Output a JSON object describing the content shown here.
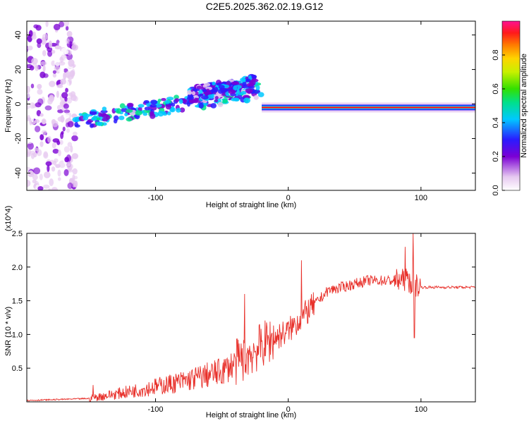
{
  "title": "C2E5.2025.362.02.19.G12",
  "chart_data": [
    {
      "type": "heatmap",
      "name": "spectrogram",
      "xlabel": "Height of straight line (km)",
      "ylabel": "Frequency (Hz)",
      "xlim": [
        -197,
        141
      ],
      "ylim": [
        -50,
        48
      ],
      "xticks": [
        -100,
        0,
        100
      ],
      "xtick_labels": [
        "-100",
        "0",
        "100"
      ],
      "yticks": [
        -40,
        -20,
        0,
        20,
        40
      ],
      "ytick_labels": [
        "-40",
        "-20",
        "0",
        "20",
        "40"
      ],
      "colorbar": {
        "label": "Normalized spectral amplitude",
        "range": [
          0,
          1
        ],
        "ticks": [
          0.0,
          0.2,
          0.4,
          0.6,
          0.8
        ],
        "tick_labels": [
          "0.0",
          "0.2",
          "0.4",
          "0.6",
          "0.8"
        ]
      },
      "features": [
        {
          "name": "scattered noise",
          "x_range": [
            -197,
            -160
          ],
          "freq_range": [
            -50,
            48
          ],
          "amplitude": 0.15
        },
        {
          "name": "rising broadband band",
          "x_start": -160,
          "x_end": -20,
          "freq_start": -10,
          "freq_end": 8,
          "amplitude": 0.3
        },
        {
          "name": "upper branch",
          "x_start": -75,
          "x_end": -25,
          "freq_start": 5,
          "freq_end": 12,
          "amplitude": 0.25
        },
        {
          "name": "narrow tone",
          "x_start": -20,
          "x_end": 141,
          "freq": -2,
          "amplitude": 0.95
        }
      ]
    },
    {
      "type": "line",
      "name": "snr",
      "xlabel": "Height of straight line (km)",
      "ylabel": "SNR (10 * v/v)",
      "y_multiplier": "(x10^4)",
      "xlim": [
        -197,
        141
      ],
      "ylim": [
        0,
        2.5
      ],
      "xticks": [
        -100,
        0,
        100
      ],
      "xtick_labels": [
        "-100",
        "0",
        "100"
      ],
      "yticks": [
        0.5,
        1.0,
        1.5,
        2.0,
        2.5
      ],
      "ytick_labels": [
        "0.5",
        "1.0",
        "1.5",
        "2.0",
        "2.5"
      ],
      "series_color": "#e8302a",
      "trend": [
        {
          "x": -197,
          "y": 0.02
        },
        {
          "x": -150,
          "y": 0.05
        },
        {
          "x": -120,
          "y": 0.15
        },
        {
          "x": -80,
          "y": 0.3
        },
        {
          "x": -50,
          "y": 0.45
        },
        {
          "x": -30,
          "y": 0.7
        },
        {
          "x": -15,
          "y": 0.9
        },
        {
          "x": 0,
          "y": 1.05
        },
        {
          "x": 15,
          "y": 1.35
        },
        {
          "x": 30,
          "y": 1.65
        },
        {
          "x": 60,
          "y": 1.8
        },
        {
          "x": 90,
          "y": 1.8
        },
        {
          "x": 100,
          "y": 1.7
        },
        {
          "x": 141,
          "y": 1.7
        }
      ],
      "spikes": [
        {
          "x": -147,
          "y": 0.25
        },
        {
          "x": -33,
          "y": 1.6
        },
        {
          "x": 10,
          "y": 2.1
        },
        {
          "x": 88,
          "y": 2.3
        },
        {
          "x": 94,
          "y": 2.5
        },
        {
          "x": 95,
          "y": 0.95
        }
      ]
    }
  ]
}
